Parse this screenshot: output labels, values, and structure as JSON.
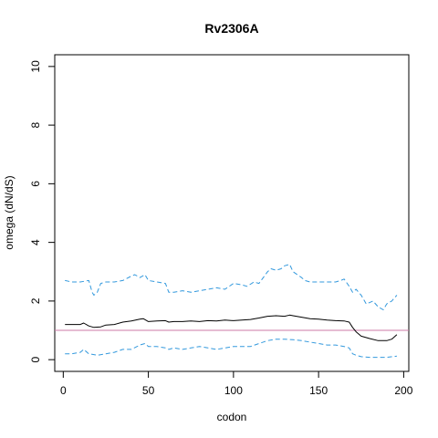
{
  "chart_data": {
    "type": "line",
    "title": "Rv2306A",
    "xlabel": "codon",
    "ylabel": "omega (dN/dS)",
    "xlim": [
      -5,
      203
    ],
    "ylim": [
      -0.4,
      10.4
    ],
    "xticks": [
      0,
      50,
      100,
      150,
      200
    ],
    "yticks": [
      0,
      2,
      4,
      6,
      8,
      10
    ],
    "reference_line": {
      "y": 1,
      "color": "#CC79A7"
    },
    "grid": false,
    "legend": "none",
    "series": [
      {
        "role": "estimate",
        "style": "solid",
        "color": "#000000",
        "points": [
          [
            1,
            1.2
          ],
          [
            5,
            1.2
          ],
          [
            10,
            1.2
          ],
          [
            12,
            1.25
          ],
          [
            15,
            1.15
          ],
          [
            18,
            1.1
          ],
          [
            22,
            1.12
          ],
          [
            25,
            1.18
          ],
          [
            30,
            1.2
          ],
          [
            35,
            1.28
          ],
          [
            40,
            1.32
          ],
          [
            45,
            1.38
          ],
          [
            47,
            1.4
          ],
          [
            50,
            1.3
          ],
          [
            55,
            1.32
          ],
          [
            60,
            1.33
          ],
          [
            62,
            1.28
          ],
          [
            65,
            1.3
          ],
          [
            70,
            1.3
          ],
          [
            75,
            1.32
          ],
          [
            80,
            1.3
          ],
          [
            85,
            1.33
          ],
          [
            90,
            1.32
          ],
          [
            95,
            1.35
          ],
          [
            100,
            1.33
          ],
          [
            105,
            1.35
          ],
          [
            110,
            1.37
          ],
          [
            115,
            1.42
          ],
          [
            120,
            1.48
          ],
          [
            125,
            1.5
          ],
          [
            130,
            1.48
          ],
          [
            133,
            1.52
          ],
          [
            135,
            1.5
          ],
          [
            140,
            1.45
          ],
          [
            145,
            1.4
          ],
          [
            150,
            1.38
          ],
          [
            155,
            1.35
          ],
          [
            160,
            1.33
          ],
          [
            165,
            1.32
          ],
          [
            168,
            1.28
          ],
          [
            170,
            1.1
          ],
          [
            172,
            0.95
          ],
          [
            175,
            0.8
          ],
          [
            180,
            0.72
          ],
          [
            185,
            0.65
          ],
          [
            190,
            0.65
          ],
          [
            193,
            0.7
          ],
          [
            196,
            0.85
          ]
        ]
      },
      {
        "role": "upper bound",
        "style": "dashed",
        "color": "#3399DD",
        "points": [
          [
            1,
            2.7
          ],
          [
            5,
            2.65
          ],
          [
            10,
            2.65
          ],
          [
            15,
            2.7
          ],
          [
            17,
            2.3
          ],
          [
            18,
            2.2
          ],
          [
            20,
            2.3
          ],
          [
            22,
            2.6
          ],
          [
            25,
            2.65
          ],
          [
            30,
            2.65
          ],
          [
            35,
            2.7
          ],
          [
            40,
            2.85
          ],
          [
            42,
            2.9
          ],
          [
            45,
            2.8
          ],
          [
            48,
            2.9
          ],
          [
            50,
            2.7
          ],
          [
            55,
            2.65
          ],
          [
            60,
            2.6
          ],
          [
            62,
            2.3
          ],
          [
            65,
            2.3
          ],
          [
            70,
            2.35
          ],
          [
            75,
            2.3
          ],
          [
            80,
            2.35
          ],
          [
            85,
            2.4
          ],
          [
            90,
            2.45
          ],
          [
            95,
            2.4
          ],
          [
            100,
            2.6
          ],
          [
            105,
            2.55
          ],
          [
            108,
            2.5
          ],
          [
            112,
            2.65
          ],
          [
            115,
            2.6
          ],
          [
            120,
            3.0
          ],
          [
            122,
            3.1
          ],
          [
            125,
            3.05
          ],
          [
            128,
            3.1
          ],
          [
            130,
            3.2
          ],
          [
            133,
            3.25
          ],
          [
            135,
            3.0
          ],
          [
            140,
            2.8
          ],
          [
            142,
            2.7
          ],
          [
            145,
            2.65
          ],
          [
            150,
            2.65
          ],
          [
            155,
            2.65
          ],
          [
            160,
            2.65
          ],
          [
            163,
            2.7
          ],
          [
            165,
            2.75
          ],
          [
            168,
            2.5
          ],
          [
            170,
            2.3
          ],
          [
            172,
            2.4
          ],
          [
            175,
            2.2
          ],
          [
            178,
            1.9
          ],
          [
            182,
            2.0
          ],
          [
            185,
            1.8
          ],
          [
            188,
            1.7
          ],
          [
            190,
            1.9
          ],
          [
            193,
            2.0
          ],
          [
            196,
            2.2
          ]
        ]
      },
      {
        "role": "lower bound",
        "style": "dashed",
        "color": "#3399DD",
        "points": [
          [
            1,
            0.2
          ],
          [
            5,
            0.2
          ],
          [
            10,
            0.25
          ],
          [
            12,
            0.35
          ],
          [
            15,
            0.2
          ],
          [
            20,
            0.15
          ],
          [
            25,
            0.2
          ],
          [
            30,
            0.25
          ],
          [
            35,
            0.35
          ],
          [
            40,
            0.35
          ],
          [
            45,
            0.5
          ],
          [
            48,
            0.55
          ],
          [
            50,
            0.45
          ],
          [
            55,
            0.45
          ],
          [
            60,
            0.4
          ],
          [
            62,
            0.35
          ],
          [
            65,
            0.4
          ],
          [
            70,
            0.35
          ],
          [
            75,
            0.4
          ],
          [
            80,
            0.45
          ],
          [
            85,
            0.4
          ],
          [
            90,
            0.35
          ],
          [
            95,
            0.4
          ],
          [
            100,
            0.45
          ],
          [
            105,
            0.45
          ],
          [
            110,
            0.45
          ],
          [
            115,
            0.55
          ],
          [
            120,
            0.65
          ],
          [
            125,
            0.7
          ],
          [
            130,
            0.7
          ],
          [
            135,
            0.68
          ],
          [
            140,
            0.65
          ],
          [
            145,
            0.6
          ],
          [
            150,
            0.55
          ],
          [
            155,
            0.5
          ],
          [
            160,
            0.5
          ],
          [
            165,
            0.45
          ],
          [
            168,
            0.4
          ],
          [
            170,
            0.2
          ],
          [
            172,
            0.15
          ],
          [
            175,
            0.1
          ],
          [
            180,
            0.08
          ],
          [
            185,
            0.08
          ],
          [
            190,
            0.08
          ],
          [
            196,
            0.12
          ]
        ]
      }
    ]
  }
}
